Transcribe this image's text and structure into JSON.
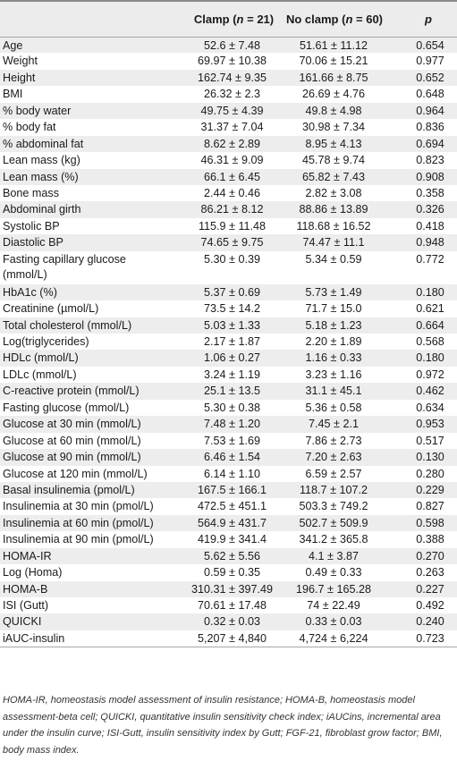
{
  "header": {
    "label": "",
    "clamp": "Clamp (n = 21)",
    "no_clamp": "No clamp (n = 60)",
    "p": "p"
  },
  "rows": [
    {
      "label": "Age",
      "clamp": "52.6 ± 7.48",
      "no_clamp": "51.61 ± 11.12",
      "p": "0.654"
    },
    {
      "label": "Weight",
      "clamp": "69.97 ± 10.38",
      "no_clamp": "70.06 ± 15.21",
      "p": "0.977"
    },
    {
      "label": "Height",
      "clamp": "162.74 ± 9.35",
      "no_clamp": "161.66 ± 8.75",
      "p": "0.652"
    },
    {
      "label": "BMI",
      "clamp": "26.32 ± 2.3",
      "no_clamp": "26.69 ± 4.76",
      "p": "0.648"
    },
    {
      "label": "% body water",
      "clamp": "49.75 ± 4.39",
      "no_clamp": "49.8 ± 4.98",
      "p": "0.964"
    },
    {
      "label": "% body fat",
      "clamp": "31.37 ± 7.04",
      "no_clamp": "30.98 ± 7.34",
      "p": "0.836"
    },
    {
      "label": "% abdominal fat",
      "clamp": "8.62 ± 2.89",
      "no_clamp": "8.95 ± 4.13",
      "p": "0.694"
    },
    {
      "label": "Lean mass (kg)",
      "clamp": "46.31 ± 9.09",
      "no_clamp": "45.78 ± 9.74",
      "p": "0.823"
    },
    {
      "label": "Lean mass (%)",
      "clamp": "66.1 ± 6.45",
      "no_clamp": "65.82 ± 7.43",
      "p": "0.908"
    },
    {
      "label": "Bone mass",
      "clamp": "2.44 ± 0.46",
      "no_clamp": "2.82 ± 3.08",
      "p": "0.358"
    },
    {
      "label": "Abdominal girth",
      "clamp": "86.21 ± 8.12",
      "no_clamp": "88.86 ± 13.89",
      "p": "0.326"
    },
    {
      "label": "Systolic BP",
      "clamp": "115.9 ± 11.48",
      "no_clamp": "118.68 ± 16.52",
      "p": "0.418"
    },
    {
      "label": "Diastolic BP",
      "clamp": "74.65 ± 9.75",
      "no_clamp": "74.47 ± 11.1",
      "p": "0.948"
    },
    {
      "label": "Fasting capillary glucose (mmol/L)",
      "clamp": "5.30 ± 0.39",
      "no_clamp": "5.34 ± 0.59",
      "p": "0.772",
      "tall": true
    },
    {
      "label": "HbA1c (%)",
      "clamp": "5.37 ± 0.69",
      "no_clamp": "5.73 ± 1.49",
      "p": "0.180"
    },
    {
      "label": "Creatinine (µmol/L)",
      "clamp": "73.5 ± 14.2",
      "no_clamp": "71.7 ± 15.0",
      "p": "0.621"
    },
    {
      "label": "Total cholesterol (mmol/L)",
      "clamp": "5.03 ± 1.33",
      "no_clamp": "5.18 ± 1.23",
      "p": "0.664"
    },
    {
      "label": "Log(triglycerides)",
      "clamp": "2.17 ± 1.87",
      "no_clamp": "2.20 ± 1.89",
      "p": "0.568"
    },
    {
      "label": "HDLc (mmol/L)",
      "clamp": "1.06 ± 0.27",
      "no_clamp": "1.16 ± 0.33",
      "p": "0.180"
    },
    {
      "label": "LDLc (mmol/L)",
      "clamp": "3.24 ± 1.19",
      "no_clamp": "3.23 ± 1.16",
      "p": "0.972"
    },
    {
      "label": "C-reactive protein (mmol/L)",
      "clamp": "25.1 ± 13.5",
      "no_clamp": "31.1 ± 45.1",
      "p": "0.462"
    },
    {
      "label": "Fasting glucose (mmol/L)",
      "clamp": "5.30 ± 0.38",
      "no_clamp": "5.36 ± 0.58",
      "p": "0.634"
    },
    {
      "label": "Glucose at 30 min (mmol/L)",
      "clamp": "7.48 ± 1.20",
      "no_clamp": "7.45 ± 2.1",
      "p": "0.953"
    },
    {
      "label": "Glucose at 60 min (mmol/L)",
      "clamp": "7.53 ± 1.69",
      "no_clamp": "7.86 ± 2.73",
      "p": "0.517"
    },
    {
      "label": "Glucose at 90 min (mmol/L)",
      "clamp": "6.46 ± 1.54",
      "no_clamp": "7.20 ± 2.63",
      "p": "0.130"
    },
    {
      "label": "Glucose at 120 min (mmol/L)",
      "clamp": "6.14 ± 1.10",
      "no_clamp": "6.59 ± 2.57",
      "p": "0.280"
    },
    {
      "label": "Basal insulinemia (pmol/L)",
      "clamp": "167.5 ± 166.1",
      "no_clamp": "118.7 ± 107.2",
      "p": "0.229"
    },
    {
      "label": "Insulinemia at 30 min (pmol/L)",
      "clamp": "472.5 ± 451.1",
      "no_clamp": "503.3 ± 749.2",
      "p": "0.827"
    },
    {
      "label": "Insulinemia at 60 min (pmol/L)",
      "clamp": "564.9 ± 431.7",
      "no_clamp": "502.7 ± 509.9",
      "p": "0.598"
    },
    {
      "label": "Insulinemia at 90 min (pmol/L)",
      "clamp": "419.9 ± 341.4",
      "no_clamp": "341.2 ± 365.8",
      "p": "0.388"
    },
    {
      "label": "HOMA-IR",
      "clamp": "5.62 ± 5.56",
      "no_clamp": "4.1 ± 3.87",
      "p": "0.270"
    },
    {
      "label": "Log (Homa)",
      "clamp": "0.59 ± 0.35",
      "no_clamp": "0.49 ± 0.33",
      "p": "0.263"
    },
    {
      "label": "HOMA-B",
      "clamp": "310.31 ± 397.49",
      "no_clamp": "196.7 ± 165.28",
      "p": "0.227"
    },
    {
      "label": "ISI (Gutt)",
      "clamp": "70.61 ± 17.48",
      "no_clamp": "74 ± 22.49",
      "p": "0.492"
    },
    {
      "label": "QUICKI",
      "clamp": "0.32 ± 0.03",
      "no_clamp": "0.33 ± 0.03",
      "p": "0.240"
    },
    {
      "label": "iAUC-insulin",
      "clamp": "5,207 ± 4,840",
      "no_clamp": "4,724 ± 6,224",
      "p": "0.723"
    }
  ],
  "footnote": "HOMA-IR, homeostasis model assessment of insulin resistance; HOMA-B, homeostasis model assessment-beta cell; QUICKI, quantitative insulin sensitivity check index; iAUCins, incremental area under the insulin curve; ISI-Gutt, insulin sensitivity index by Gutt; FGF-21, fibroblast grow factor; BMI, body mass index."
}
